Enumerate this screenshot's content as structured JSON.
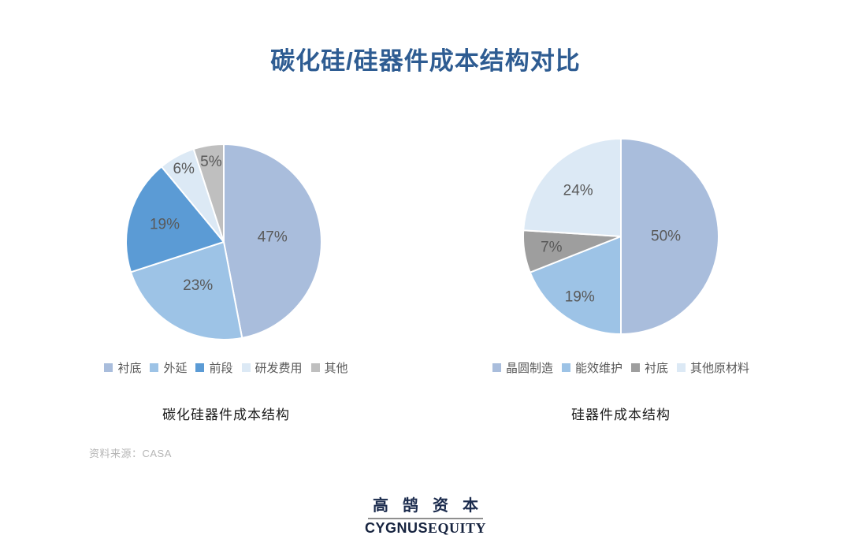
{
  "page": {
    "title": "碳化硅/硅器件成本结构对比",
    "source": "资料来源：CASA",
    "background": "#ffffff",
    "title_color": "#2E5C92"
  },
  "chart_data": [
    {
      "type": "pie",
      "title": "碳化硅器件成本结构",
      "legend_position": "bottom",
      "start_angle_deg": 0,
      "direction": "clockwise",
      "label_format": "percent",
      "label_color": "#595959",
      "slices": [
        {
          "label": "衬底",
          "value": 47,
          "color": "#A9BDDC",
          "label_r": 0.5
        },
        {
          "label": "外延",
          "value": 23,
          "color": "#9DC3E6",
          "label_r": 0.52
        },
        {
          "label": "前段",
          "value": 19,
          "color": "#5B9BD5",
          "label_r": 0.63
        },
        {
          "label": "研发费用",
          "value": 6,
          "color": "#DCE9F5",
          "label_r": 0.85
        },
        {
          "label": "其他",
          "value": 5,
          "color": "#BFBFBF",
          "label_r": 0.83
        }
      ]
    },
    {
      "type": "pie",
      "title": "硅器件成本结构",
      "legend_position": "bottom",
      "start_angle_deg": 0,
      "direction": "clockwise",
      "label_format": "percent",
      "label_color": "#595959",
      "slices": [
        {
          "label": "晶圆制造",
          "value": 50,
          "color": "#A9BDDC",
          "label_r": 0.46
        },
        {
          "label": "能效维护",
          "value": 19,
          "color": "#9DC3E6",
          "label_r": 0.75
        },
        {
          "label": "衬底",
          "value": 7,
          "color": "#9E9E9E",
          "label_r": 0.72
        },
        {
          "label": "其他原材料",
          "value": 24,
          "color": "#DCE9F5",
          "label_r": 0.64
        }
      ]
    }
  ],
  "footer": {
    "logo_cn": "高鹄资本",
    "logo_en_bold": "CYGNUS",
    "logo_en_serif": "EQUITY"
  }
}
